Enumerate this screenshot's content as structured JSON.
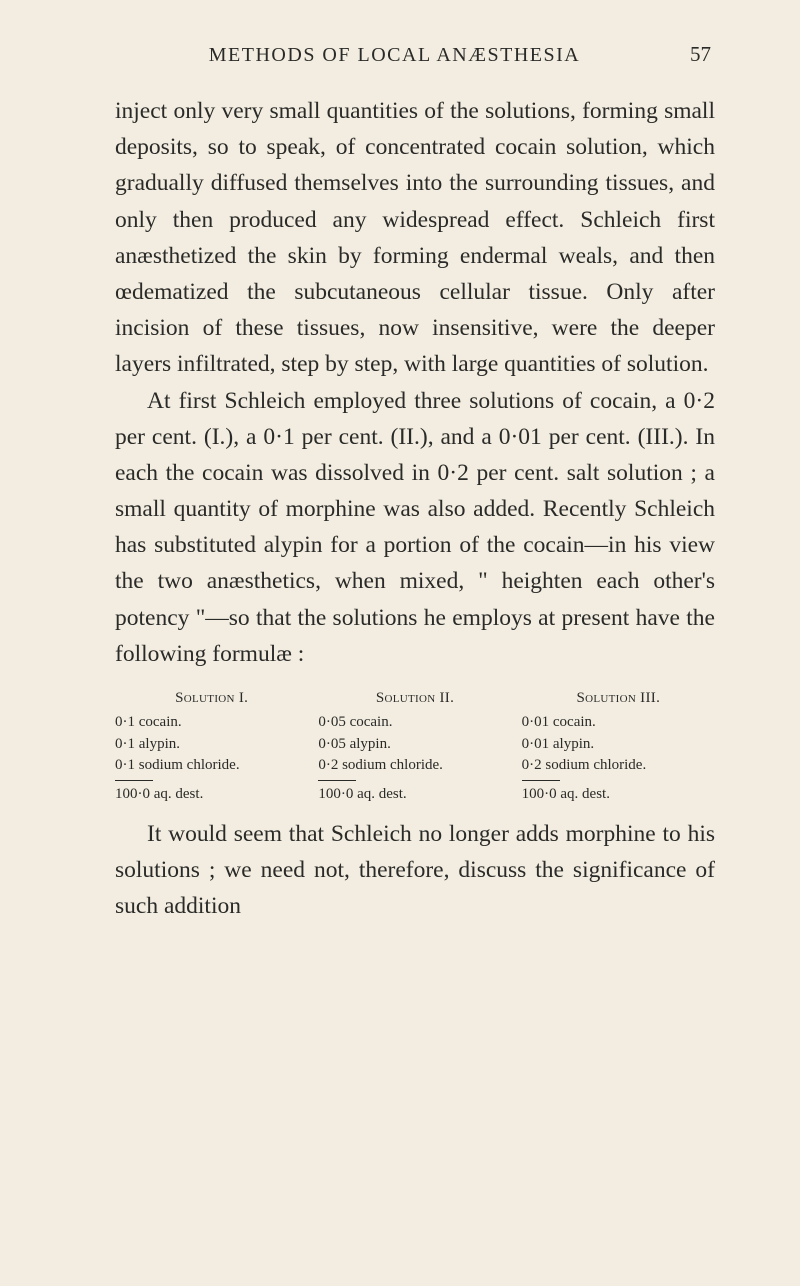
{
  "header": {
    "running_title": "METHODS OF LOCAL ANÆSTHESIA",
    "page_number": "57"
  },
  "paragraphs": {
    "p1": "inject only very small quantities of the solutions, forming small deposits, so to speak, of concentrated cocain solution, which gradually diffused themselves into the surrounding tissues, and only then produced any widespread effect. Schleich first anæsthetized the skin by forming endermal weals, and then œdematized the subcutaneous cellular tissue. Only after incision of these tissues, now insensitive, were the deeper layers infiltrated, step by step, with large quantities of solution.",
    "p2": "At first Schleich employed three solutions of cocain, a 0·2 per cent. (I.), a 0·1 per cent. (II.), and a 0·01 per cent. (III.). In each the cocain was dissolved in 0·2 per cent. salt solution ; a small quantity of morphine was also added. Recently Schleich has substituted alypin for a portion of the cocain—in his view the two anæsthetics, when mixed, \" heighten each other's potency \"—so that the solutions he employs at present have the following formulæ :",
    "p3": "It would seem that Schleich no longer adds morphine to his solutions ; we need not, therefore, discuss the significance of such addition"
  },
  "solutions": {
    "s1": {
      "title": "Solution I.",
      "lines": [
        "0·1 cocain.",
        "0·1 alypin.",
        "0·1 sodium chloride."
      ],
      "total": "100·0 aq. dest."
    },
    "s2": {
      "title": "Solution II.",
      "lines": [
        "0·05 cocain.",
        "0·05 alypin.",
        "0·2  sodium chloride."
      ],
      "total": "100·0  aq. dest."
    },
    "s3": {
      "title": "Solution III.",
      "lines": [
        "0·01 cocain.",
        "0·01 alypin.",
        "0·2  sodium chloride."
      ],
      "total": "100·0  aq. dest."
    }
  }
}
